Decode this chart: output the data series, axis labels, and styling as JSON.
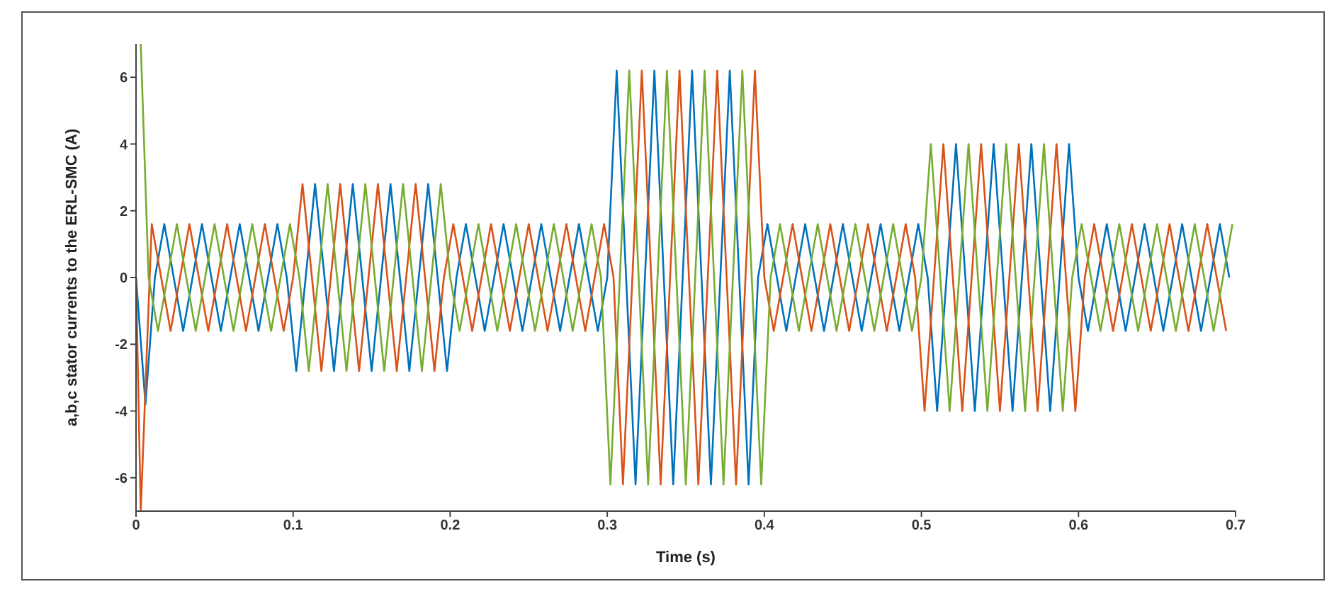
{
  "chart_data": {
    "type": "line",
    "xlabel": "Time (s)",
    "ylabel": "a,b,c stator currents to the ERL-SMC (A)",
    "xlim": [
      0,
      0.7
    ],
    "ylim": [
      -7,
      7
    ],
    "xticks": [
      0,
      0.1,
      0.2,
      0.3,
      0.4,
      0.5,
      0.6,
      0.7
    ],
    "yticks": [
      -6,
      -4,
      -2,
      0,
      2,
      4,
      6
    ],
    "grid": false,
    "series": [
      {
        "color": "#0072bd",
        "x": [
          0,
          0.006,
          0.012,
          0.018,
          0.024,
          0.03,
          0.036,
          0.042,
          0.048,
          0.054,
          0.06,
          0.066,
          0.072,
          0.078,
          0.084,
          0.09,
          0.096,
          0.102,
          0.108,
          0.114,
          0.12,
          0.126,
          0.132,
          0.138,
          0.144,
          0.15,
          0.156,
          0.162,
          0.168,
          0.174,
          0.18,
          0.186,
          0.192,
          0.198,
          0.204,
          0.21,
          0.216,
          0.222,
          0.228,
          0.234,
          0.24,
          0.246,
          0.252,
          0.258,
          0.264,
          0.27,
          0.276,
          0.282,
          0.288,
          0.294,
          0.3,
          0.306,
          0.312,
          0.318,
          0.324,
          0.33,
          0.336,
          0.342,
          0.348,
          0.354,
          0.36,
          0.366,
          0.372,
          0.378,
          0.384,
          0.39,
          0.396,
          0.402,
          0.408,
          0.414,
          0.42,
          0.426,
          0.432,
          0.438,
          0.444,
          0.45,
          0.456,
          0.462,
          0.468,
          0.474,
          0.48,
          0.486,
          0.492,
          0.498,
          0.504,
          0.51,
          0.516,
          0.522,
          0.528,
          0.534,
          0.54,
          0.546,
          0.552,
          0.558,
          0.564,
          0.57,
          0.576,
          0.582,
          0.588,
          0.594,
          0.6,
          0.606,
          0.612,
          0.618,
          0.624,
          0.63,
          0.636,
          0.642,
          0.648,
          0.654,
          0.66,
          0.666,
          0.672,
          0.678,
          0.684,
          0.69,
          0.696
        ],
        "values": [
          0,
          -3.8,
          0,
          1.6,
          0,
          -1.6,
          0,
          1.6,
          0,
          -1.6,
          0,
          1.6,
          0,
          -1.6,
          0,
          1.6,
          0,
          -2.8,
          0,
          2.8,
          0,
          -2.8,
          0,
          2.8,
          0,
          -2.8,
          0,
          2.8,
          0,
          -2.8,
          0,
          2.8,
          0,
          -2.8,
          0,
          1.6,
          0,
          -1.6,
          0,
          1.6,
          0,
          -1.6,
          0,
          1.6,
          0,
          -1.6,
          0,
          1.6,
          0,
          -1.6,
          0,
          6.2,
          0,
          -6.2,
          0,
          6.2,
          0,
          -6.2,
          0,
          6.2,
          0,
          -6.2,
          0,
          6.2,
          0,
          -6.2,
          0,
          1.6,
          0,
          -1.6,
          0,
          1.6,
          0,
          -1.6,
          0,
          1.6,
          0,
          -1.6,
          0,
          1.6,
          0,
          -1.6,
          0,
          1.6,
          0,
          -4,
          0,
          4,
          0,
          -4,
          0,
          4,
          0,
          -4,
          0,
          4,
          0,
          -4,
          0,
          4,
          0,
          -1.6,
          0,
          1.6,
          0,
          -1.6,
          0,
          1.6,
          0,
          -1.6,
          0,
          1.6,
          0,
          -1.6,
          0,
          1.6,
          0
        ]
      },
      {
        "color": "#d95319",
        "x": [
          0,
          0.003,
          0.01,
          0.016,
          0.022,
          0.028,
          0.034,
          0.04,
          0.046,
          0.052,
          0.058,
          0.064,
          0.07,
          0.076,
          0.082,
          0.088,
          0.094,
          0.1,
          0.106,
          0.112,
          0.118,
          0.124,
          0.13,
          0.136,
          0.142,
          0.148,
          0.154,
          0.16,
          0.166,
          0.172,
          0.178,
          0.184,
          0.19,
          0.196,
          0.202,
          0.208,
          0.214,
          0.22,
          0.226,
          0.232,
          0.238,
          0.244,
          0.25,
          0.256,
          0.262,
          0.268,
          0.274,
          0.28,
          0.286,
          0.292,
          0.298,
          0.304,
          0.31,
          0.316,
          0.322,
          0.328,
          0.334,
          0.34,
          0.346,
          0.352,
          0.358,
          0.364,
          0.37,
          0.376,
          0.382,
          0.388,
          0.394,
          0.4,
          0.406,
          0.412,
          0.418,
          0.424,
          0.43,
          0.436,
          0.442,
          0.448,
          0.454,
          0.46,
          0.466,
          0.472,
          0.478,
          0.484,
          0.49,
          0.496,
          0.502,
          0.508,
          0.514,
          0.52,
          0.526,
          0.532,
          0.538,
          0.544,
          0.55,
          0.556,
          0.562,
          0.568,
          0.574,
          0.58,
          0.586,
          0.592,
          0.598,
          0.604,
          0.61,
          0.616,
          0.622,
          0.628,
          0.634,
          0.64,
          0.646,
          0.652,
          0.658,
          0.664,
          0.67,
          0.676,
          0.682,
          0.688,
          0.694
        ],
        "values": [
          0,
          -7,
          1.6,
          0,
          -1.6,
          0,
          1.6,
          0,
          -1.6,
          0,
          1.6,
          0,
          -1.6,
          0,
          1.6,
          0,
          -1.6,
          0,
          2.8,
          0,
          -2.8,
          0,
          2.8,
          0,
          -2.8,
          0,
          2.8,
          0,
          -2.8,
          0,
          2.8,
          0,
          -2.8,
          0,
          1.6,
          0,
          -1.6,
          0,
          1.6,
          0,
          -1.6,
          0,
          1.6,
          0,
          -1.6,
          0,
          1.6,
          0,
          -1.6,
          0,
          1.6,
          0,
          -6.2,
          0,
          6.2,
          0,
          -6.2,
          0,
          6.2,
          0,
          -6.2,
          0,
          6.2,
          0,
          -6.2,
          0,
          6.2,
          0,
          -1.6,
          0,
          1.6,
          0,
          -1.6,
          0,
          1.6,
          0,
          -1.6,
          0,
          1.6,
          0,
          -1.6,
          0,
          1.6,
          0,
          -4,
          0,
          4,
          0,
          -4,
          0,
          4,
          0,
          -4,
          0,
          4,
          0,
          -4,
          0,
          4,
          0,
          -4,
          0,
          1.6,
          0,
          -1.6,
          0,
          1.6,
          0,
          -1.6,
          0,
          1.6,
          0,
          -1.6,
          0,
          1.6,
          0,
          -1.6
        ]
      },
      {
        "color": "#77ac30",
        "x": [
          0.003,
          0.008,
          0.014,
          0.02,
          0.026,
          0.032,
          0.038,
          0.044,
          0.05,
          0.056,
          0.062,
          0.068,
          0.074,
          0.08,
          0.086,
          0.092,
          0.098,
          0.104,
          0.11,
          0.116,
          0.122,
          0.128,
          0.134,
          0.14,
          0.146,
          0.152,
          0.158,
          0.164,
          0.17,
          0.176,
          0.182,
          0.188,
          0.194,
          0.2,
          0.206,
          0.212,
          0.218,
          0.224,
          0.23,
          0.236,
          0.242,
          0.248,
          0.254,
          0.26,
          0.266,
          0.272,
          0.278,
          0.284,
          0.29,
          0.296,
          0.302,
          0.308,
          0.314,
          0.32,
          0.326,
          0.332,
          0.338,
          0.344,
          0.35,
          0.356,
          0.362,
          0.368,
          0.374,
          0.38,
          0.386,
          0.392,
          0.398,
          0.404,
          0.41,
          0.416,
          0.422,
          0.428,
          0.434,
          0.44,
          0.446,
          0.452,
          0.458,
          0.464,
          0.47,
          0.476,
          0.482,
          0.488,
          0.494,
          0.5,
          0.506,
          0.512,
          0.518,
          0.524,
          0.53,
          0.536,
          0.542,
          0.548,
          0.554,
          0.56,
          0.566,
          0.572,
          0.578,
          0.584,
          0.59,
          0.596,
          0.602,
          0.608,
          0.614,
          0.62,
          0.626,
          0.632,
          0.638,
          0.644,
          0.65,
          0.656,
          0.662,
          0.668,
          0.674,
          0.68,
          0.686,
          0.692,
          0.698
        ],
        "values": [
          7,
          0,
          -1.6,
          0,
          1.6,
          0,
          -1.6,
          0,
          1.6,
          0,
          -1.6,
          0,
          1.6,
          0,
          -1.6,
          0,
          1.6,
          0,
          -2.8,
          0,
          2.8,
          0,
          -2.8,
          0,
          2.8,
          0,
          -2.8,
          0,
          2.8,
          0,
          -2.8,
          0,
          2.8,
          0,
          -1.6,
          0,
          1.6,
          0,
          -1.6,
          0,
          1.6,
          0,
          -1.6,
          0,
          1.6,
          0,
          -1.6,
          0,
          1.6,
          0,
          -6.2,
          0,
          6.2,
          0,
          -6.2,
          0,
          6.2,
          0,
          -6.2,
          0,
          6.2,
          0,
          -6.2,
          0,
          6.2,
          0,
          -6.2,
          0,
          1.6,
          0,
          -1.6,
          0,
          1.6,
          0,
          -1.6,
          0,
          1.6,
          0,
          -1.6,
          0,
          1.6,
          0,
          -1.6,
          0,
          4,
          0,
          -4,
          0,
          4,
          0,
          -4,
          0,
          4,
          0,
          -4,
          0,
          4,
          0,
          -4,
          0,
          1.6,
          0,
          -1.6,
          0,
          1.6,
          0,
          -1.6,
          0,
          1.6,
          0,
          -1.6,
          0,
          1.6,
          0,
          -1.6,
          0,
          1.6
        ]
      }
    ]
  }
}
